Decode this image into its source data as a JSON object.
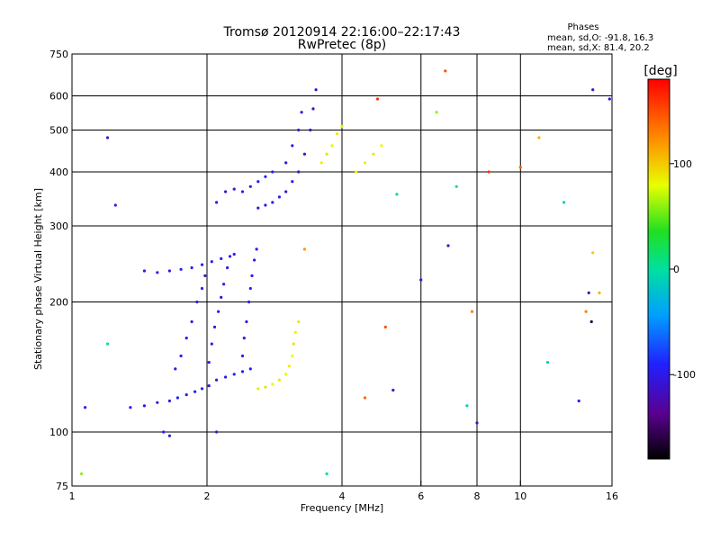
{
  "header": {
    "title": "Tromsø 20120914 22:16:00–22:17:43",
    "subtitle": "RwPretec (8p)"
  },
  "phase_box": {
    "heading": "Phases",
    "line_o": "mean, sd,O: -91.8, 16.3",
    "line_x": "mean, sd,X:  81.4, 20.2"
  },
  "colorbar": {
    "unit_label": "[deg]",
    "min": -180,
    "max": 180,
    "ticks": [
      {
        "value": 100,
        "label": "100"
      },
      {
        "value": 0,
        "label": "0"
      },
      {
        "value": -100,
        "label": "-100"
      }
    ]
  },
  "chart_data": {
    "type": "scatter",
    "xlabel": "Frequency [MHz]",
    "ylabel": "Stationary phase Virtual Height [km]",
    "xscale": "log",
    "yscale": "log",
    "xlim": [
      1,
      16
    ],
    "ylim": [
      75,
      750
    ],
    "x_ticks": [
      {
        "value": 1,
        "label": "1"
      },
      {
        "value": 2,
        "label": "2"
      },
      {
        "value": 4,
        "label": "4"
      },
      {
        "value": 6,
        "label": "6"
      },
      {
        "value": 8,
        "label": "8"
      },
      {
        "value": 10,
        "label": "10"
      },
      {
        "value": 16,
        "label": "16"
      }
    ],
    "y_ticks": [
      {
        "value": 75,
        "label": "75"
      },
      {
        "value": 100,
        "label": "100"
      },
      {
        "value": 200,
        "label": "200"
      },
      {
        "value": 300,
        "label": "300"
      },
      {
        "value": 400,
        "label": "400"
      },
      {
        "value": 500,
        "label": "500"
      },
      {
        "value": 600,
        "label": "600"
      },
      {
        "value": 750,
        "label": "750"
      }
    ],
    "x_gridlines": [
      2,
      4,
      6,
      8,
      10
    ],
    "y_gridlines": [
      100,
      200,
      300,
      400,
      500,
      600
    ],
    "color_encoding": "phase (deg)",
    "points": [
      [
        1.35,
        114,
        -95
      ],
      [
        1.45,
        115,
        -100
      ],
      [
        1.55,
        117,
        -98
      ],
      [
        1.65,
        118,
        -96
      ],
      [
        1.72,
        120,
        -92
      ],
      [
        1.8,
        122,
        -100
      ],
      [
        1.88,
        124,
        -95
      ],
      [
        1.95,
        126,
        -90
      ],
      [
        2.02,
        128,
        -105
      ],
      [
        2.1,
        132,
        -97
      ],
      [
        2.2,
        134,
        -100
      ],
      [
        2.3,
        136,
        -93
      ],
      [
        2.4,
        138,
        -98
      ],
      [
        2.5,
        140,
        -95
      ],
      [
        1.7,
        140,
        -100
      ],
      [
        1.75,
        150,
        -95
      ],
      [
        1.8,
        165,
        -100
      ],
      [
        1.85,
        180,
        -92
      ],
      [
        1.9,
        200,
        -98
      ],
      [
        1.95,
        215,
        -96
      ],
      [
        1.98,
        230,
        -100
      ],
      [
        2.02,
        145,
        -95
      ],
      [
        2.05,
        160,
        -100
      ],
      [
        2.08,
        175,
        -97
      ],
      [
        2.12,
        190,
        -94
      ],
      [
        2.15,
        205,
        -100
      ],
      [
        2.18,
        220,
        -92
      ],
      [
        2.22,
        240,
        -98
      ],
      [
        2.25,
        255,
        -95
      ],
      [
        2.4,
        150,
        -96
      ],
      [
        2.42,
        165,
        -100
      ],
      [
        2.45,
        180,
        -95
      ],
      [
        2.48,
        200,
        -98
      ],
      [
        2.5,
        215,
        -90
      ],
      [
        2.52,
        230,
        -97
      ],
      [
        2.55,
        250,
        -100
      ],
      [
        2.58,
        265,
        -93
      ],
      [
        1.45,
        236,
        -95
      ],
      [
        1.55,
        234,
        -98
      ],
      [
        1.65,
        236,
        -100
      ],
      [
        1.75,
        238,
        -96
      ],
      [
        1.85,
        240,
        -92
      ],
      [
        1.95,
        244,
        -100
      ],
      [
        2.05,
        248,
        -95
      ],
      [
        2.15,
        252,
        -98
      ],
      [
        2.3,
        258,
        -94
      ],
      [
        2.6,
        126,
        85
      ],
      [
        2.7,
        127,
        90
      ],
      [
        2.8,
        129,
        80
      ],
      [
        2.9,
        132,
        88
      ],
      [
        3.0,
        136,
        82
      ],
      [
        3.05,
        142,
        86
      ],
      [
        3.1,
        150,
        80
      ],
      [
        3.12,
        160,
        90
      ],
      [
        3.15,
        170,
        84
      ],
      [
        3.2,
        180,
        88
      ],
      [
        1.6,
        100,
        -95
      ],
      [
        1.65,
        98,
        -100
      ],
      [
        2.1,
        100,
        -98
      ],
      [
        2.1,
        340,
        -95
      ],
      [
        2.2,
        360,
        -98
      ],
      [
        2.3,
        365,
        -100
      ],
      [
        2.4,
        360,
        -92
      ],
      [
        2.5,
        370,
        -96
      ],
      [
        2.6,
        380,
        -100
      ],
      [
        2.7,
        390,
        -95
      ],
      [
        2.8,
        400,
        -98
      ],
      [
        2.6,
        330,
        -100
      ],
      [
        2.7,
        335,
        -95
      ],
      [
        2.8,
        340,
        -98
      ],
      [
        2.9,
        350,
        -92
      ],
      [
        3.0,
        360,
        -100
      ],
      [
        3.1,
        380,
        -96
      ],
      [
        3.2,
        400,
        -105
      ],
      [
        3.3,
        440,
        -110
      ],
      [
        3.4,
        500,
        -115
      ],
      [
        3.45,
        560,
        -110
      ],
      [
        3.5,
        620,
        -108
      ],
      [
        3.0,
        420,
        -100
      ],
      [
        3.1,
        460,
        -98
      ],
      [
        3.2,
        500,
        -95
      ],
      [
        3.25,
        550,
        -100
      ],
      [
        3.6,
        420,
        85
      ],
      [
        3.7,
        440,
        90
      ],
      [
        3.8,
        460,
        82
      ],
      [
        3.9,
        490,
        88
      ],
      [
        4.0,
        510,
        86
      ],
      [
        4.3,
        400,
        80
      ],
      [
        4.5,
        420,
        84
      ],
      [
        4.7,
        440,
        88
      ],
      [
        4.9,
        460,
        82
      ],
      [
        1.07,
        114,
        -95
      ],
      [
        1.05,
        80,
        60
      ],
      [
        1.25,
        335,
        -100
      ],
      [
        1.2,
        480,
        -98
      ],
      [
        1.2,
        160,
        10
      ],
      [
        3.3,
        265,
        120
      ],
      [
        3.7,
        80,
        -5
      ],
      [
        4.5,
        120,
        140
      ],
      [
        4.8,
        590,
        160
      ],
      [
        5.0,
        175,
        150
      ],
      [
        5.2,
        125,
        -100
      ],
      [
        5.3,
        355,
        -5
      ],
      [
        6.0,
        225,
        -110
      ],
      [
        6.5,
        550,
        60
      ],
      [
        6.8,
        685,
        150
      ],
      [
        6.9,
        270,
        -110
      ],
      [
        7.2,
        370,
        10
      ],
      [
        7.6,
        115,
        -10
      ],
      [
        7.8,
        190,
        130
      ],
      [
        8.0,
        105,
        -110
      ],
      [
        8.5,
        400,
        160
      ],
      [
        10.0,
        410,
        140
      ],
      [
        11.0,
        480,
        110
      ],
      [
        11.5,
        145,
        -10
      ],
      [
        12.5,
        340,
        -10
      ],
      [
        13.5,
        118,
        -100
      ],
      [
        14.0,
        190,
        130
      ],
      [
        14.5,
        620,
        -110
      ],
      [
        14.5,
        260,
        100
      ],
      [
        15.0,
        210,
        110
      ],
      [
        15.8,
        590,
        -110
      ],
      [
        14.4,
        180,
        -160
      ],
      [
        14.2,
        210,
        -120
      ]
    ]
  }
}
